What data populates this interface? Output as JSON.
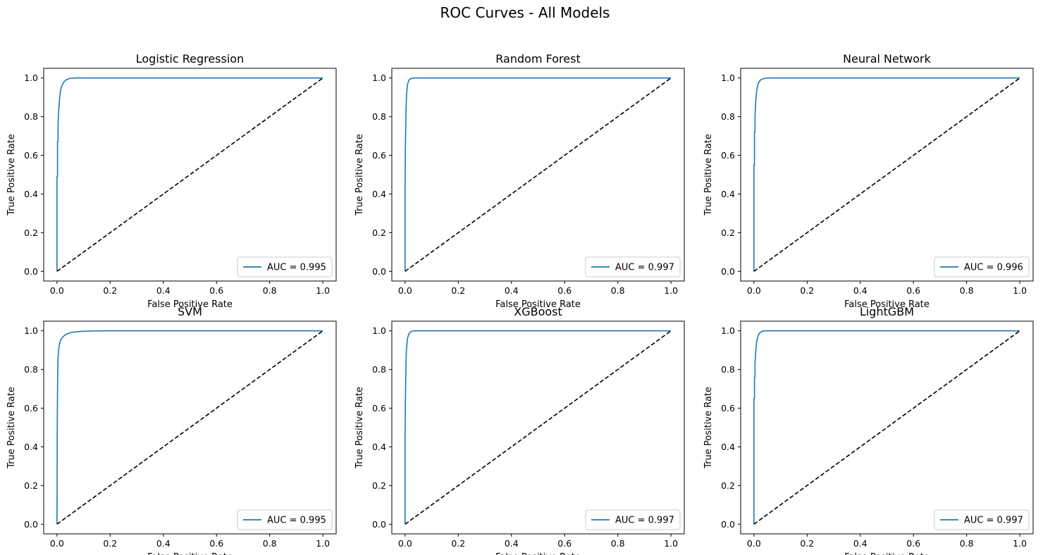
{
  "figure": {
    "title": "ROC Curves - All Models"
  },
  "colors": {
    "roc_line": "#1f77b4",
    "baseline": "#000000"
  },
  "chart_data": [
    {
      "type": "line",
      "title": "Logistic Regression",
      "xlabel": "False Positive Rate",
      "ylabel": "True Positive Rate",
      "xlim": [
        -0.05,
        1.05
      ],
      "ylim": [
        -0.05,
        1.05
      ],
      "xticks": [
        "0.0",
        "0.2",
        "0.4",
        "0.6",
        "0.8",
        "1.0"
      ],
      "yticks": [
        "0.0",
        "0.2",
        "0.4",
        "0.6",
        "0.8",
        "1.0"
      ],
      "legend": "lower-right",
      "series": [
        {
          "name": "AUC = 0.995",
          "x": [
            0,
            0,
            0.002,
            0.002,
            0.004,
            0.004,
            0.006,
            0.008,
            0.01,
            0.013,
            0.016,
            0.02,
            0.025,
            0.032,
            0.04,
            0.05,
            0.07,
            0.1,
            1.0
          ],
          "y": [
            0,
            0.49,
            0.49,
            0.67,
            0.67,
            0.76,
            0.82,
            0.86,
            0.9,
            0.93,
            0.95,
            0.965,
            0.978,
            0.988,
            0.994,
            0.998,
            1.0,
            1.0,
            1.0
          ]
        },
        {
          "name": "",
          "style": "dashed",
          "x": [
            0,
            1
          ],
          "y": [
            0,
            1
          ]
        }
      ]
    },
    {
      "type": "line",
      "title": "Random Forest",
      "xlabel": "False Positive Rate",
      "ylabel": "True Positive Rate",
      "xlim": [
        -0.05,
        1.05
      ],
      "ylim": [
        -0.05,
        1.05
      ],
      "xticks": [
        "0.0",
        "0.2",
        "0.4",
        "0.6",
        "0.8",
        "1.0"
      ],
      "yticks": [
        "0.0",
        "0.2",
        "0.4",
        "0.6",
        "0.8",
        "1.0"
      ],
      "legend": "lower-right",
      "series": [
        {
          "name": "AUC = 0.997",
          "x": [
            0,
            0,
            0.001,
            0.002,
            0.003,
            0.004,
            0.005,
            0.007,
            0.009,
            0.012,
            0.015,
            0.02,
            0.03,
            1.0
          ],
          "y": [
            0,
            0.45,
            0.62,
            0.72,
            0.8,
            0.86,
            0.9,
            0.94,
            0.965,
            0.98,
            0.99,
            0.996,
            1.0,
            1.0
          ]
        },
        {
          "name": "",
          "style": "dashed",
          "x": [
            0,
            1
          ],
          "y": [
            0,
            1
          ]
        }
      ]
    },
    {
      "type": "line",
      "title": "Neural Network",
      "xlabel": "False Positive Rate",
      "ylabel": "True Positive Rate",
      "xlim": [
        -0.05,
        1.05
      ],
      "ylim": [
        -0.05,
        1.05
      ],
      "xticks": [
        "0.0",
        "0.2",
        "0.4",
        "0.6",
        "0.8",
        "1.0"
      ],
      "yticks": [
        "0.0",
        "0.2",
        "0.4",
        "0.6",
        "0.8",
        "1.0"
      ],
      "legend": "lower-right",
      "series": [
        {
          "name": "AUC = 0.996",
          "x": [
            0,
            0,
            0.002,
            0.002,
            0.004,
            0.004,
            0.006,
            0.008,
            0.01,
            0.013,
            0.016,
            0.02,
            0.026,
            0.034,
            0.045,
            0.06,
            1.0
          ],
          "y": [
            0,
            0.55,
            0.55,
            0.72,
            0.72,
            0.8,
            0.86,
            0.9,
            0.93,
            0.955,
            0.97,
            0.982,
            0.991,
            0.996,
            0.999,
            1.0,
            1.0
          ]
        },
        {
          "name": "",
          "style": "dashed",
          "x": [
            0,
            1
          ],
          "y": [
            0,
            1
          ]
        }
      ]
    },
    {
      "type": "line",
      "title": "SVM",
      "xlabel": "False Positive Rate",
      "ylabel": "True Positive Rate",
      "xlim": [
        -0.05,
        1.05
      ],
      "ylim": [
        -0.05,
        1.05
      ],
      "xticks": [
        "0.0",
        "0.2",
        "0.4",
        "0.6",
        "0.8",
        "1.0"
      ],
      "yticks": [
        "0.0",
        "0.2",
        "0.4",
        "0.6",
        "0.8",
        "1.0"
      ],
      "legend": "lower-right",
      "series": [
        {
          "name": "AUC = 0.995",
          "x": [
            0,
            0.001,
            0.002,
            0.003,
            0.004,
            0.006,
            0.008,
            0.011,
            0.015,
            0.02,
            0.027,
            0.035,
            0.045,
            0.06,
            0.08,
            0.1,
            0.13,
            0.17,
            0.22,
            1.0
          ],
          "y": [
            0,
            0.5,
            0.7,
            0.8,
            0.86,
            0.9,
            0.92,
            0.94,
            0.955,
            0.965,
            0.975,
            0.982,
            0.988,
            0.993,
            0.996,
            0.998,
            0.999,
            1.0,
            1.0,
            1.0
          ]
        },
        {
          "name": "",
          "style": "dashed",
          "x": [
            0,
            1
          ],
          "y": [
            0,
            1
          ]
        }
      ]
    },
    {
      "type": "line",
      "title": "XGBoost",
      "xlabel": "False Positive Rate",
      "ylabel": "True Positive Rate",
      "xlim": [
        -0.05,
        1.05
      ],
      "ylim": [
        -0.05,
        1.05
      ],
      "xticks": [
        "0.0",
        "0.2",
        "0.4",
        "0.6",
        "0.8",
        "1.0"
      ],
      "yticks": [
        "0.0",
        "0.2",
        "0.4",
        "0.6",
        "0.8",
        "1.0"
      ],
      "legend": "lower-right",
      "series": [
        {
          "name": "AUC = 0.997",
          "x": [
            0,
            0,
            0.001,
            0.002,
            0.003,
            0.004,
            0.005,
            0.007,
            0.009,
            0.012,
            0.016,
            0.021,
            0.03,
            1.0
          ],
          "y": [
            0,
            0.45,
            0.62,
            0.72,
            0.8,
            0.86,
            0.9,
            0.935,
            0.96,
            0.975,
            0.988,
            0.995,
            1.0,
            1.0
          ]
        },
        {
          "name": "",
          "style": "dashed",
          "x": [
            0,
            1
          ],
          "y": [
            0,
            1
          ]
        }
      ]
    },
    {
      "type": "line",
      "title": "LightGBM",
      "xlabel": "False Positive Rate",
      "ylabel": "True Positive Rate",
      "xlim": [
        -0.05,
        1.05
      ],
      "ylim": [
        -0.05,
        1.05
      ],
      "xticks": [
        "0.0",
        "0.2",
        "0.4",
        "0.6",
        "0.8",
        "1.0"
      ],
      "yticks": [
        "0.0",
        "0.2",
        "0.4",
        "0.6",
        "0.8",
        "1.0"
      ],
      "legend": "lower-right",
      "series": [
        {
          "name": "AUC = 0.997",
          "x": [
            0,
            0,
            0.002,
            0.002,
            0.004,
            0.004,
            0.006,
            0.008,
            0.01,
            0.013,
            0.016,
            0.02,
            0.025,
            0.032,
            0.04,
            1.0
          ],
          "y": [
            0,
            0.65,
            0.65,
            0.76,
            0.76,
            0.83,
            0.88,
            0.91,
            0.94,
            0.96,
            0.975,
            0.986,
            0.994,
            0.998,
            1.0,
            1.0
          ]
        },
        {
          "name": "",
          "style": "dashed",
          "x": [
            0,
            1
          ],
          "y": [
            0,
            1
          ]
        }
      ]
    }
  ]
}
